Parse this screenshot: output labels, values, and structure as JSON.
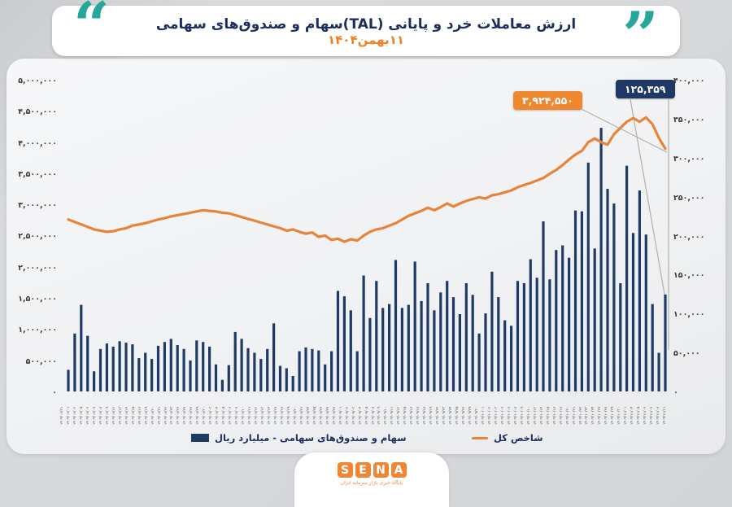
{
  "header": {
    "title": "ارزش معاملات خرد و پایانی (TAL)سهام و صندوق‌های سهامی",
    "subtitle": "۱۱بهمن۱۴۰۴",
    "open_quote": "“",
    "close_quote": "”"
  },
  "colors": {
    "bars": "#203a66",
    "line": "#e8833a",
    "title_navy": "#1c2d5e",
    "subtitle_orange": "#f07f23",
    "quote_teal": "#27a79b",
    "callout_orange_bg": "#f0882f",
    "callout_navy_bg": "#1f3864",
    "leader_gray": "#b0b0b0",
    "logo_orange": "#ef8634"
  },
  "callouts": {
    "index_last_value": "۳,۹۲۴,۵۵۰",
    "trade_last_value": "۱۲۵,۳۵۹"
  },
  "legend": {
    "bars_label": "سهام و صندوق‌های سهامی - میلیارد ریال",
    "line_label": "شاخص کل"
  },
  "logo": {
    "letters": [
      "S",
      "E",
      "N",
      "A"
    ],
    "tagline": "پایگاه خبری بازار سرمایه ایران"
  },
  "chart_data": {
    "type": "bar",
    "subtype": "combo-bar-line-dual-axis",
    "title": "ارزش معاملات خرد و پایانی (TAL)سهام و صندوق‌های سهامی ۱۱بهمن۱۴۰۴",
    "left_axis": {
      "min": 0,
      "max": 5000000,
      "step": 500000,
      "labels": [
        "۵,۰۰۰,۰۰۰",
        "۴,۵۰۰,۰۰۰",
        "۴,۰۰۰,۰۰۰",
        "۳,۵۰۰,۰۰۰",
        "۳,۰۰۰,۰۰۰",
        "۲,۵۰۰,۰۰۰",
        "۲,۰۰۰,۰۰۰",
        "۱,۵۰۰,۰۰۰",
        "۱,۰۰۰,۰۰۰",
        "۵۰۰,۰۰۰",
        "۰"
      ]
    },
    "right_axis": {
      "min": 0,
      "max": 400000,
      "step": 50000,
      "labels": [
        "۴۰۰,۰۰۰",
        "۳۵۰,۰۰۰",
        "۳۰۰,۰۰۰",
        "۲۵۰,۰۰۰",
        "۲۰۰,۰۰۰",
        "۱۵۰,۰۰۰",
        "۱۰۰,۰۰۰",
        "۵۰,۰۰۰",
        "۰"
      ]
    },
    "grid": false,
    "legend_position": "bottom",
    "x": [
      "۱۴۰۴/۰۶/۳۱",
      "۱۴۰۴/۰۷/۰۱",
      "۱۴۰۴/۰۷/۰۲",
      "۱۴۰۴/۰۷/۰۵",
      "۱۴۰۴/۰۷/۰۶",
      "۱۴۰۴/۰۷/۰۷",
      "۱۴۰۴/۰۷/۰۸",
      "۱۴۰۴/۰۷/۰۹",
      "۱۴۰۴/۰۷/۱۲",
      "۱۴۰۴/۰۷/۱۳",
      "۱۴۰۴/۰۷/۱۴",
      "۱۴۰۴/۰۷/۱۵",
      "۱۴۰۴/۰۷/۱۶",
      "۱۴۰۴/۰۷/۱۹",
      "۱۴۰۴/۰۷/۲۰",
      "۱۴۰۴/۰۷/۲۱",
      "۱۴۰۴/۰۷/۲۲",
      "۱۴۰۴/۰۷/۲۳",
      "۱۴۰۴/۰۷/۲۶",
      "۱۴۰۴/۰۷/۲۷",
      "۱۴۰۴/۰۷/۲۸",
      "۱۴۰۴/۰۷/۲۹",
      "۱۴۰۴/۰۷/۳۰",
      "۱۴۰۴/۰۸/۰۳",
      "۱۴۰۴/۰۸/۰۴",
      "۱۴۰۴/۰۸/۰۵",
      "۱۴۰۴/۰۸/۰۶",
      "۱۴۰۴/۰۸/۰۷",
      "۱۴۰۴/۰۸/۱۰",
      "۱۴۰۴/۰۸/۱۱",
      "۱۴۰۴/۰۸/۱۲",
      "۱۴۰۴/۰۸/۱۳",
      "۱۴۰۴/۰۸/۱۴",
      "۱۴۰۴/۰۸/۱۷",
      "۱۴۰۴/۰۸/۱۸",
      "۱۴۰۴/۰۸/۱۹",
      "۱۴۰۴/۰۸/۲۰",
      "۱۴۰۴/۰۸/۲۱",
      "۱۴۰۴/۰۸/۲۴",
      "۱۴۰۴/۰۸/۲۵",
      "۱۴۰۴/۰۸/۲۶",
      "۱۴۰۴/۰۸/۲۷",
      "۱۴۰۴/۰۸/۲۸",
      "۱۴۰۴/۰۹/۰۱",
      "۱۴۰۴/۰۹/۰۲",
      "۱۴۰۴/۰۹/۰۳",
      "۱۴۰۴/۰۹/۰۴",
      "۱۴۰۴/۰۹/۰۵",
      "۱۴۰۴/۰۹/۰۸",
      "۱۴۰۴/۰۹/۰۹",
      "۱۴۰۴/۰۹/۱۰",
      "۱۴۰۴/۰۹/۱۱",
      "۱۴۰۴/۰۹/۱۲",
      "۱۴۰۴/۰۹/۱۵",
      "۱۴۰۴/۰۹/۱۶",
      "۱۴۰۴/۰۹/۱۷",
      "۱۴۰۴/۰۹/۱۸",
      "۱۴۰۴/۰۹/۱۹",
      "۱۴۰۴/۰۹/۲۲",
      "۱۴۰۴/۰۹/۲۳",
      "۱۴۰۴/۰۹/۲۴",
      "۱۴۰۴/۰۹/۲۵",
      "۱۴۰۴/۰۹/۲۶",
      "۱۴۰۴/۰۹/۲۹",
      "۱۴۰۴/۰۹/۳۰",
      "۱۴۰۴/۱۰/۰۱",
      "۱۴۰۴/۱۰/۰۲",
      "۱۴۰۴/۱۰/۰۳",
      "۱۴۰۴/۱۰/۰۶",
      "۱۴۰۴/۱۰/۰۷",
      "۱۴۰۴/۱۰/۰۸",
      "۱۴۰۴/۱۰/۰۹",
      "۱۴۰۴/۱۰/۱۰",
      "۱۴۰۴/۱۰/۱۳",
      "۱۴۰۴/۱۰/۱۴",
      "۱۴۰۴/۱۰/۱۵",
      "۱۴۰۴/۱۰/۱۶",
      "۱۴۰۴/۱۰/۱۷",
      "۱۴۰۴/۱۰/۲۰",
      "۱۴۰۴/۱۰/۲۱",
      "۱۴۰۴/۱۰/۲۲",
      "۱۴۰۴/۱۰/۲۳",
      "۱۴۰۴/۱۰/۲۴",
      "۱۴۰۴/۱۰/۲۷",
      "۱۴۰۴/۱۰/۲۸",
      "۱۴۰۴/۱۰/۲۹",
      "۱۴۰۴/۱۰/۳۰",
      "۱۴۰۴/۱۱/۰۱",
      "۱۴۰۴/۱۱/۰۴",
      "۱۴۰۴/۱۱/۰۵",
      "۱۴۰۴/۱۱/۰۶",
      "۱۴۰۴/۱۱/۰۷",
      "۱۴۰۴/۱۱/۰۸",
      "۱۴۰۴/۱۱/۱۱"
    ],
    "series": [
      {
        "name": "سهام و صندوق‌های سهامی - میلیارد ریال",
        "type": "bar",
        "axis": "right",
        "color": "#203a66",
        "values": [
          28000,
          75000,
          112000,
          72000,
          26000,
          55000,
          62000,
          58000,
          65000,
          63000,
          61000,
          43000,
          50000,
          42000,
          59000,
          64000,
          68000,
          60000,
          55000,
          40000,
          66000,
          64000,
          58000,
          35000,
          15000,
          34000,
          77000,
          68000,
          56000,
          50000,
          42000,
          55000,
          88000,
          33000,
          30000,
          20000,
          52000,
          57000,
          55000,
          53000,
          35000,
          52000,
          130000,
          123000,
          105000,
          52000,
          150000,
          95000,
          143000,
          108000,
          113000,
          170000,
          108000,
          112000,
          168000,
          117000,
          140000,
          105000,
          128000,
          143000,
          122000,
          100000,
          140000,
          125000,
          75000,
          101000,
          155000,
          122000,
          92000,
          85000,
          143000,
          140000,
          171000,
          147000,
          220000,
          145000,
          183000,
          189000,
          173000,
          234000,
          233000,
          296000,
          185000,
          341000,
          262000,
          243000,
          140000,
          292000,
          205000,
          260000,
          203000,
          113000,
          50000,
          125359
        ]
      },
      {
        "name": "شاخص کل",
        "type": "line",
        "axis": "left",
        "color": "#e8833a",
        "values": [
          2780000,
          2740000,
          2700000,
          2660000,
          2620000,
          2600000,
          2580000,
          2590000,
          2620000,
          2640000,
          2680000,
          2700000,
          2720000,
          2750000,
          2780000,
          2800000,
          2830000,
          2850000,
          2870000,
          2890000,
          2910000,
          2930000,
          2920000,
          2910000,
          2890000,
          2880000,
          2850000,
          2820000,
          2790000,
          2760000,
          2730000,
          2700000,
          2670000,
          2640000,
          2600000,
          2620000,
          2580000,
          2550000,
          2570000,
          2500000,
          2520000,
          2450000,
          2470000,
          2420000,
          2460000,
          2440000,
          2520000,
          2580000,
          2620000,
          2640000,
          2680000,
          2720000,
          2780000,
          2840000,
          2880000,
          2920000,
          2970000,
          2930000,
          2980000,
          3040000,
          2990000,
          3040000,
          3080000,
          3110000,
          3140000,
          3120000,
          3170000,
          3190000,
          3220000,
          3250000,
          3300000,
          3340000,
          3370000,
          3410000,
          3450000,
          3520000,
          3580000,
          3660000,
          3750000,
          3830000,
          3890000,
          4030000,
          4090000,
          4030000,
          3990000,
          4160000,
          4260000,
          4360000,
          4420000,
          4360000,
          4430000,
          4320000,
          4100000,
          3924550
        ]
      }
    ],
    "annotations": [
      {
        "label": "۳,۹۲۴,۵۵۰",
        "value": 3924550,
        "series": "شاخص کل",
        "point": "last",
        "box_color": "#f0882f"
      },
      {
        "label": "۱۲۵,۳۵۹",
        "value": 125359,
        "series": "سهام و صندوق‌های سهامی - میلیارد ریال",
        "point": "last",
        "box_color": "#1f3864"
      }
    ]
  }
}
